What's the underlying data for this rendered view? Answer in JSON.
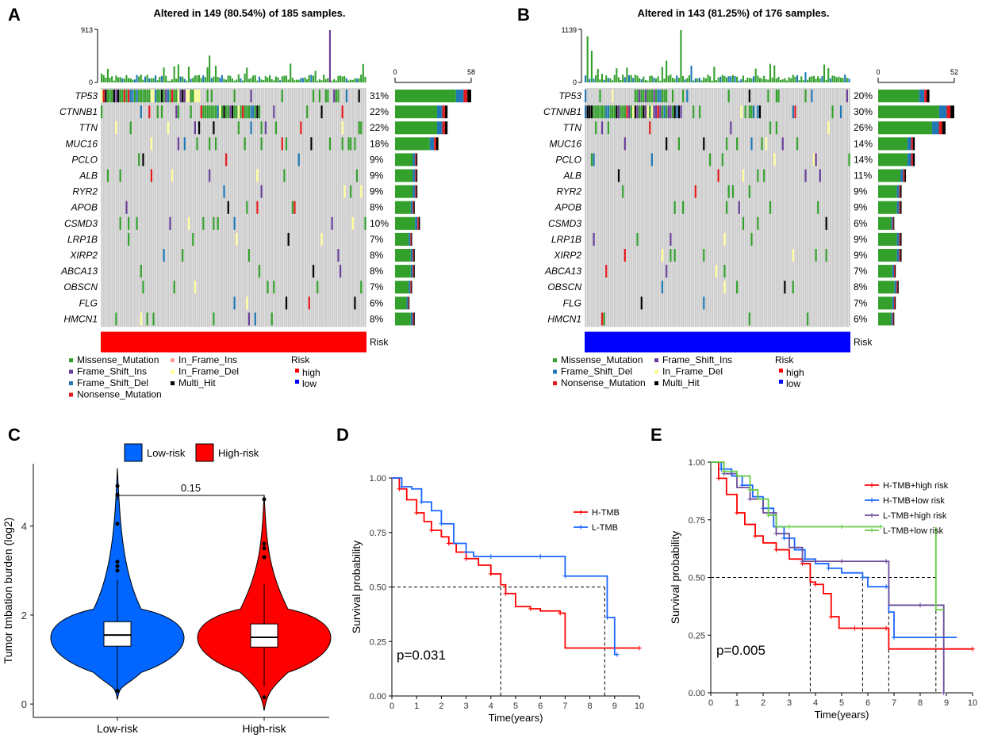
{
  "colors": {
    "missense": "#33a02c",
    "frame_shift_ins": "#6a3d9a",
    "frame_shift_del": "#1f78b4",
    "nonsense": "#e31a1c",
    "in_frame_ins": "#fb9a99",
    "in_frame_del": "#ffff99",
    "multi_hit": "#000000",
    "grey": "#cccccc",
    "risk_high": "#ff0000",
    "risk_low": "#0000ff",
    "low_fill": "#0066ff",
    "high_fill": "#ff0000",
    "km_red": "#ff0000",
    "km_blue": "#1a66ff",
    "km_purple": "#6b4c9a",
    "km_green": "#66cc44"
  },
  "panel_labels": [
    "A",
    "B",
    "C",
    "D",
    "E"
  ],
  "chart_data": [
    {
      "id": "A",
      "type": "oncoplot",
      "title": "Altered in 149 (80.54%) of 185 samples.",
      "tmb_max": "913",
      "tmb_min": "0",
      "bar_axis_min": "0",
      "bar_axis_max": "58",
      "genes": [
        "TP53",
        "CTNNB1",
        "TTN",
        "MUC16",
        "PCLO",
        "ALB",
        "RYR2",
        "APOB",
        "CSMD3",
        "LRP1B",
        "XIRP2",
        "ABCA13",
        "OBSCN",
        "FLG",
        "HMCN1"
      ],
      "percents": [
        "31%",
        "22%",
        "22%",
        "18%",
        "9%",
        "9%",
        "9%",
        "8%",
        "10%",
        "7%",
        "8%",
        "8%",
        "7%",
        "6%",
        "8%"
      ],
      "counts": [
        58,
        40,
        40,
        33,
        17,
        17,
        17,
        15,
        19,
        13,
        15,
        15,
        13,
        11,
        15
      ],
      "risk_label": "Risk",
      "risk_group": "high",
      "legend": [
        "Missense_Mutation",
        "Frame_Shift_Ins",
        "Frame_Shift_Del",
        "Nonsense_Mutation",
        "In_Frame_Ins",
        "In_Frame_Del",
        "Multi_Hit"
      ],
      "risk_legend_title": "Risk",
      "risk_legend": [
        "high",
        "low"
      ]
    },
    {
      "id": "B",
      "type": "oncoplot",
      "title": "Altered in 143 (81.25%) of 176 samples.",
      "tmb_max": "1139",
      "tmb_min": "0",
      "bar_axis_min": "0",
      "bar_axis_max": "52",
      "genes": [
        "TP53",
        "CTNNB1",
        "TTN",
        "MUC16",
        "PCLO",
        "ALB",
        "RYR2",
        "APOB",
        "CSMD3",
        "LRP1B",
        "XIRP2",
        "ABCA13",
        "OBSCN",
        "FLG",
        "HMCN1"
      ],
      "percents": [
        "20%",
        "30%",
        "26%",
        "14%",
        "14%",
        "11%",
        "9%",
        "9%",
        "6%",
        "9%",
        "9%",
        "7%",
        "8%",
        "7%",
        "6%"
      ],
      "counts": [
        35,
        52,
        46,
        25,
        25,
        19,
        16,
        16,
        11,
        16,
        16,
        12,
        14,
        12,
        11
      ],
      "risk_label": "Risk",
      "risk_group": "low",
      "legend": [
        "Missense_Mutation",
        "Frame_Shift_Del",
        "Nonsense_Mutation",
        "Frame_Shift_Ins",
        "In_Frame_Del",
        "Multi_Hit"
      ],
      "risk_legend_title": "Risk",
      "risk_legend": [
        "high",
        "low"
      ]
    },
    {
      "id": "C",
      "type": "violin",
      "ylabel": "Tumor tmbation burden (log2)",
      "categories": [
        "Low-risk",
        "High-risk"
      ],
      "legend": [
        "Low-risk",
        "High-risk"
      ],
      "yticks": [
        "0",
        "2",
        "4"
      ],
      "ylim": [
        -0.3,
        5.4
      ],
      "median": [
        1.55,
        1.5
      ],
      "q1": [
        1.3,
        1.28
      ],
      "q3": [
        1.85,
        1.8
      ],
      "whisker_low": [
        0.35,
        0.4
      ],
      "whisker_high": [
        2.8,
        2.7
      ],
      "pvalue": "0.15"
    },
    {
      "id": "D",
      "type": "line",
      "title": "",
      "xlabel": "Time(years)",
      "ylabel": "Survival probability",
      "xticks": [
        "0",
        "1",
        "2",
        "3",
        "4",
        "5",
        "6",
        "7",
        "8",
        "9",
        "10"
      ],
      "yticks": [
        "0.00",
        "0.25",
        "0.50",
        "0.75",
        "1.00"
      ],
      "xlim": [
        0,
        10
      ],
      "ylim": [
        0,
        1
      ],
      "pvalue": "p=0.031",
      "series": [
        {
          "name": "H-TMB",
          "points": [
            [
              0,
              1
            ],
            [
              0.3,
              0.95
            ],
            [
              0.6,
              0.9
            ],
            [
              1,
              0.84
            ],
            [
              1.3,
              0.8
            ],
            [
              1.6,
              0.76
            ],
            [
              2,
              0.73
            ],
            [
              2.3,
              0.7
            ],
            [
              2.6,
              0.66
            ],
            [
              3,
              0.63
            ],
            [
              3.5,
              0.6
            ],
            [
              4,
              0.56
            ],
            [
              4.4,
              0.51
            ],
            [
              4.6,
              0.47
            ],
            [
              5,
              0.41
            ],
            [
              5.6,
              0.4
            ],
            [
              6,
              0.39
            ],
            [
              6.8,
              0.38
            ],
            [
              7,
              0.22
            ],
            [
              10,
              0.22
            ]
          ]
        },
        {
          "name": "L-TMB",
          "points": [
            [
              0,
              1
            ],
            [
              0.4,
              0.96
            ],
            [
              0.8,
              0.95
            ],
            [
              1.2,
              0.89
            ],
            [
              1.6,
              0.85
            ],
            [
              2,
              0.79
            ],
            [
              2.5,
              0.7
            ],
            [
              3,
              0.66
            ],
            [
              3.3,
              0.64
            ],
            [
              4,
              0.64
            ],
            [
              5,
              0.64
            ],
            [
              6,
              0.64
            ],
            [
              6.9,
              0.64
            ],
            [
              7,
              0.55
            ],
            [
              8.6,
              0.55
            ],
            [
              8.7,
              0.36
            ],
            [
              9,
              0.19
            ],
            [
              9.1,
              0.19
            ]
          ]
        }
      ]
    },
    {
      "id": "E",
      "type": "line",
      "title": "",
      "xlabel": "Time(years)",
      "ylabel": "Survival probability",
      "xticks": [
        "0",
        "1",
        "2",
        "3",
        "4",
        "5",
        "6",
        "7",
        "8",
        "9",
        "10"
      ],
      "yticks": [
        "0.00",
        "0.25",
        "0.50",
        "0.75",
        "1.00"
      ],
      "xlim": [
        0,
        10
      ],
      "ylim": [
        0,
        1
      ],
      "pvalue": "p=0.005",
      "series": [
        {
          "name": "H-TMB+high risk",
          "points": [
            [
              0,
              1
            ],
            [
              0.3,
              0.93
            ],
            [
              0.6,
              0.86
            ],
            [
              1,
              0.78
            ],
            [
              1.3,
              0.73
            ],
            [
              1.7,
              0.68
            ],
            [
              2,
              0.65
            ],
            [
              2.5,
              0.62
            ],
            [
              3,
              0.58
            ],
            [
              3.5,
              0.56
            ],
            [
              3.8,
              0.48
            ],
            [
              4,
              0.47
            ],
            [
              4.3,
              0.43
            ],
            [
              4.6,
              0.33
            ],
            [
              4.9,
              0.28
            ],
            [
              5.5,
              0.28
            ],
            [
              6,
              0.28
            ],
            [
              6.7,
              0.28
            ],
            [
              6.8,
              0.19
            ],
            [
              10,
              0.19
            ]
          ]
        },
        {
          "name": "H-TMB+low risk",
          "points": [
            [
              0,
              1
            ],
            [
              0.4,
              0.97
            ],
            [
              0.8,
              0.94
            ],
            [
              1.2,
              0.9
            ],
            [
              1.6,
              0.85
            ],
            [
              2,
              0.8
            ],
            [
              2.4,
              0.72
            ],
            [
              2.8,
              0.67
            ],
            [
              3.2,
              0.62
            ],
            [
              3.6,
              0.58
            ],
            [
              4,
              0.56
            ],
            [
              4.5,
              0.54
            ],
            [
              5,
              0.52
            ],
            [
              5.8,
              0.5
            ],
            [
              6,
              0.46
            ],
            [
              6.7,
              0.46
            ],
            [
              6.8,
              0.35
            ],
            [
              7,
              0.24
            ],
            [
              9.4,
              0.24
            ]
          ]
        },
        {
          "name": "L-TMB+high risk",
          "points": [
            [
              0,
              1
            ],
            [
              0.5,
              0.95
            ],
            [
              1,
              0.89
            ],
            [
              1.5,
              0.84
            ],
            [
              2,
              0.78
            ],
            [
              2.5,
              0.69
            ],
            [
              3,
              0.63
            ],
            [
              3.5,
              0.57
            ],
            [
              4,
              0.57
            ],
            [
              5,
              0.57
            ],
            [
              6,
              0.57
            ],
            [
              6.7,
              0.57
            ],
            [
              6.8,
              0.38
            ],
            [
              8,
              0.38
            ],
            [
              8.8,
              0.38
            ],
            [
              8.9,
              0.0
            ]
          ]
        },
        {
          "name": "L-TMB+low risk",
          "points": [
            [
              0,
              1
            ],
            [
              0.5,
              0.96
            ],
            [
              1,
              0.94
            ],
            [
              1.5,
              0.88
            ],
            [
              1.8,
              0.84
            ],
            [
              2.2,
              0.77
            ],
            [
              2.5,
              0.72
            ],
            [
              3,
              0.72
            ],
            [
              4,
              0.72
            ],
            [
              5,
              0.72
            ],
            [
              6,
              0.72
            ],
            [
              6.5,
              0.72
            ],
            [
              6.3,
              0.72
            ]
          ]
        }
      ],
      "extra_green": [
        [
          8.6,
          0.36
        ],
        [
          8.6,
          0.66
        ],
        [
          8.7,
          0.36
        ],
        [
          8.9,
          0.36
        ]
      ]
    }
  ]
}
